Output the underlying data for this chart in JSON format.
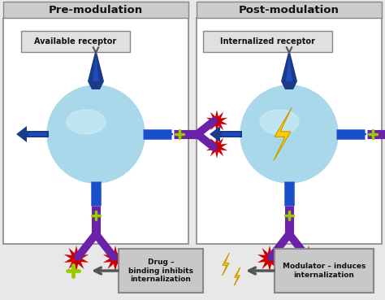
{
  "title_left": "Pre-modulation",
  "title_right": "Post-modulation",
  "label_left": "Available receptor",
  "label_right": "Internalized receptor",
  "legend_drug_text": "Drug –\nbinding inhibits\ninternalization",
  "legend_mod_text": "Modulator – induces\ninternalization",
  "bg_color": "#e8e8e8",
  "panel_bg": "#ffffff",
  "header_bg": "#cccccc",
  "cell_blue": "#a8d8ea",
  "receptor_dark_blue": "#1a3a8a",
  "receptor_mid_blue": "#2255cc",
  "antibody_purple": "#6b21a8",
  "antibody_blue": "#1a4fcc",
  "red_burst": "#cc0000",
  "green_plus": "#99cc00",
  "yellow_bolt": "#ffcc00",
  "yellow_bolt_dark": "#cc9900",
  "legend_box_bg": "#c8c8c8",
  "border_color": "#888888",
  "text_dark": "#111111"
}
